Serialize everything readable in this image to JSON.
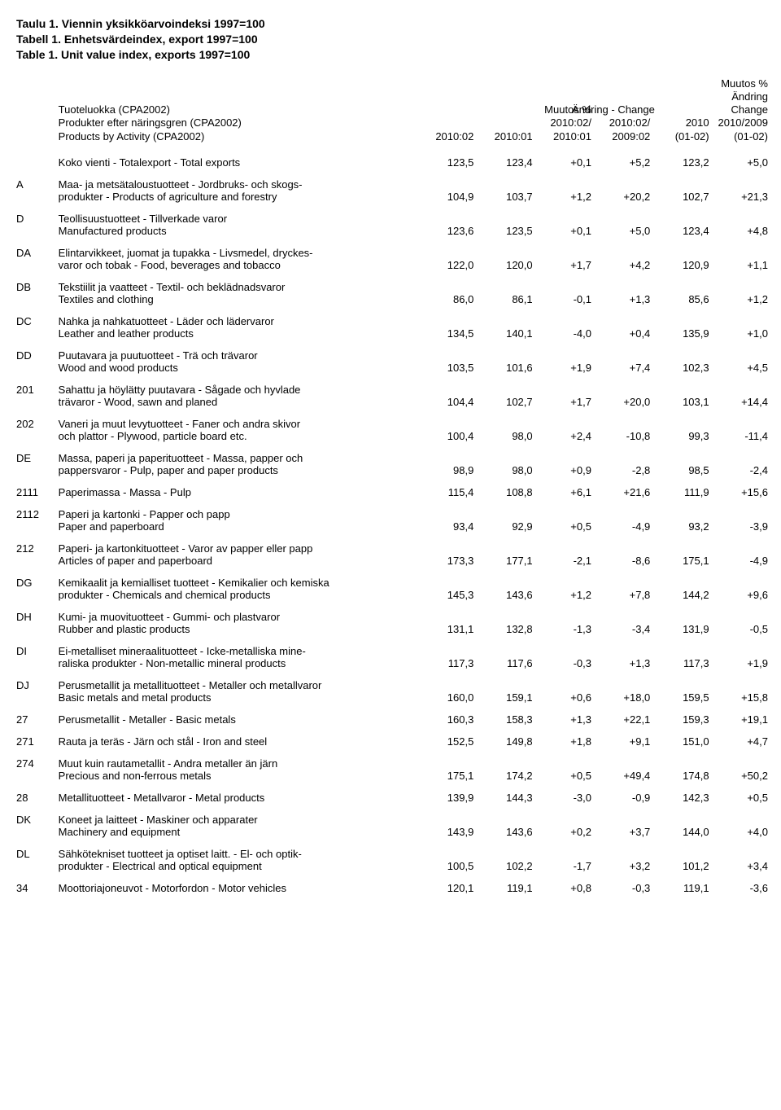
{
  "titles": {
    "fi": "Taulu 1. Viennin yksikköarvoindeksi 1997=100",
    "sv": "Tabell 1. Enhetsvärdeindex, export 1997=100",
    "en": "Table 1. Unit value index, exports 1997=100"
  },
  "header": {
    "left": {
      "l1": "Tuoteluokka (CPA2002)",
      "l2": "Produkter efter näringsgren (CPA2002)",
      "l3": "Products by Activity (CPA2002)"
    },
    "c1": {
      "r3": "2010:02"
    },
    "c2": {
      "r3": "2010:01"
    },
    "c3": {
      "r1": "Muutos %",
      "r2": "2010:02/",
      "r3": "2010:01"
    },
    "c4": {
      "r1": "Ändring - Change",
      "r2": "2010:02/",
      "r3": "2009:02"
    },
    "c5": {
      "r2": "2010",
      "r3": "(01-02)"
    },
    "c6": {
      "r0a": "Muutos %",
      "r0b": "Ändring",
      "r1": "Change",
      "r2": "2010/2009",
      "r3": "(01-02)"
    }
  },
  "rows": [
    {
      "code": "",
      "lines": [
        "Koko vienti - Totalexport - Total exports"
      ],
      "vals": [
        "123,5",
        "123,4",
        "+0,1",
        "+5,2",
        "123,2",
        "+5,0"
      ]
    },
    {
      "code": "A",
      "lines": [
        "Maa- ja metsätaloustuotteet - Jordbruks- och skogs-",
        "produkter - Products of agriculture and forestry"
      ],
      "vals": [
        "104,9",
        "103,7",
        "+1,2",
        "+20,2",
        "102,7",
        "+21,3"
      ]
    },
    {
      "code": "D",
      "lines": [
        "Teollisuustuotteet - Tillverkade varor",
        "Manufactured products"
      ],
      "vals": [
        "123,6",
        "123,5",
        "+0,1",
        "+5,0",
        "123,4",
        "+4,8"
      ]
    },
    {
      "code": "DA",
      "lines": [
        "Elintarvikkeet, juomat ja tupakka - Livsmedel, dryckes-",
        "varor och tobak - Food, beverages and tobacco"
      ],
      "vals": [
        "122,0",
        "120,0",
        "+1,7",
        "+4,2",
        "120,9",
        "+1,1"
      ]
    },
    {
      "code": "DB",
      "lines": [
        "Tekstiilit ja vaatteet - Textil- och beklädnadsvaror",
        "Textiles and clothing"
      ],
      "vals": [
        "86,0",
        "86,1",
        "-0,1",
        "+1,3",
        "85,6",
        "+1,2"
      ]
    },
    {
      "code": "DC",
      "lines": [
        "Nahka ja nahkatuotteet - Läder och lädervaror",
        "Leather and leather products"
      ],
      "vals": [
        "134,5",
        "140,1",
        "-4,0",
        "+0,4",
        "135,9",
        "+1,0"
      ]
    },
    {
      "code": "DD",
      "lines": [
        "Puutavara ja puutuotteet - Trä och trävaror",
        "Wood and wood products"
      ],
      "vals": [
        "103,5",
        "101,6",
        "+1,9",
        "+7,4",
        "102,3",
        "+4,5"
      ]
    },
    {
      "code": "201",
      "lines": [
        "Sahattu ja höylätty puutavara - Sågade och hyvlade",
        "trävaror - Wood, sawn and planed"
      ],
      "vals": [
        "104,4",
        "102,7",
        "+1,7",
        "+20,0",
        "103,1",
        "+14,4"
      ]
    },
    {
      "code": "202",
      "lines": [
        "Vaneri ja muut levytuotteet - Faner och andra skivor",
        "och plattor - Plywood, particle board etc."
      ],
      "vals": [
        "100,4",
        "98,0",
        "+2,4",
        "-10,8",
        "99,3",
        "-11,4"
      ]
    },
    {
      "code": "DE",
      "lines": [
        "Massa, paperi ja  paperituotteet - Massa, papper och",
        "pappersvaror - Pulp, paper and paper products"
      ],
      "vals": [
        "98,9",
        "98,0",
        "+0,9",
        "-2,8",
        "98,5",
        "-2,4"
      ]
    },
    {
      "code": "2111",
      "lines": [
        "Paperimassa - Massa - Pulp"
      ],
      "vals": [
        "115,4",
        "108,8",
        "+6,1",
        "+21,6",
        "111,9",
        "+15,6"
      ]
    },
    {
      "code": "2112",
      "lines": [
        "Paperi ja kartonki - Papper och papp",
        "Paper and paperboard"
      ],
      "vals": [
        "93,4",
        "92,9",
        "+0,5",
        "-4,9",
        "93,2",
        "-3,9"
      ]
    },
    {
      "code": "212",
      "lines": [
        "Paperi- ja kartonkituotteet - Varor av papper eller papp",
        "Articles of paper and paperboard"
      ],
      "vals": [
        "173,3",
        "177,1",
        "-2,1",
        "-8,6",
        "175,1",
        "-4,9"
      ]
    },
    {
      "code": "DG",
      "lines": [
        "Kemikaalit ja kemialliset tuotteet - Kemikalier och kemiska",
        "produkter - Chemicals and chemical products"
      ],
      "vals": [
        "145,3",
        "143,6",
        "+1,2",
        "+7,8",
        "144,2",
        "+9,6"
      ]
    },
    {
      "code": "DH",
      "lines": [
        "Kumi- ja muovituotteet - Gummi- och plastvaror",
        "Rubber and plastic products"
      ],
      "vals": [
        "131,1",
        "132,8",
        "-1,3",
        "-3,4",
        "131,9",
        "-0,5"
      ]
    },
    {
      "code": "DI",
      "lines": [
        "Ei-metalliset mineraalituotteet - Icke-metalliska mine-",
        "raliska produkter - Non-metallic mineral products"
      ],
      "vals": [
        "117,3",
        "117,6",
        "-0,3",
        "+1,3",
        "117,3",
        "+1,9"
      ]
    },
    {
      "code": "DJ",
      "lines": [
        "Perusmetallit ja metallituotteet - Metaller och metallvaror",
        "Basic metals and metal products"
      ],
      "vals": [
        "160,0",
        "159,1",
        "+0,6",
        "+18,0",
        "159,5",
        "+15,8"
      ]
    },
    {
      "code": "27",
      "lines": [
        "Perusmetallit - Metaller - Basic metals"
      ],
      "vals": [
        "160,3",
        "158,3",
        "+1,3",
        "+22,1",
        "159,3",
        "+19,1"
      ]
    },
    {
      "code": "271",
      "lines": [
        "Rauta ja teräs - Järn och stål - Iron and steel"
      ],
      "vals": [
        "152,5",
        "149,8",
        "+1,8",
        "+9,1",
        "151,0",
        "+4,7"
      ]
    },
    {
      "code": "274",
      "lines": [
        "Muut kuin rautametallit - Andra metaller än järn",
        "Precious and non-ferrous metals"
      ],
      "vals": [
        "175,1",
        "174,2",
        "+0,5",
        "+49,4",
        "174,8",
        "+50,2"
      ]
    },
    {
      "code": "28",
      "lines": [
        "Metallituotteet - Metallvaror - Metal products"
      ],
      "vals": [
        "139,9",
        "144,3",
        "-3,0",
        "-0,9",
        "142,3",
        "+0,5"
      ]
    },
    {
      "code": "DK",
      "lines": [
        "Koneet ja laitteet - Maskiner och apparater",
        "Machinery and equipment"
      ],
      "vals": [
        "143,9",
        "143,6",
        "+0,2",
        "+3,7",
        "144,0",
        "+4,0"
      ]
    },
    {
      "code": "DL",
      "lines": [
        "Sähkötekniset tuotteet ja optiset laitt. - El- och optik-",
        "produkter - Electrical and optical equipment"
      ],
      "vals": [
        "100,5",
        "102,2",
        "-1,7",
        "+3,2",
        "101,2",
        "+3,4"
      ]
    },
    {
      "code": "34",
      "lines": [
        "Moottoriajoneuvot - Motorfordon - Motor vehicles"
      ],
      "vals": [
        "120,1",
        "119,1",
        "+0,8",
        "-0,3",
        "119,1",
        "-3,6"
      ]
    }
  ]
}
